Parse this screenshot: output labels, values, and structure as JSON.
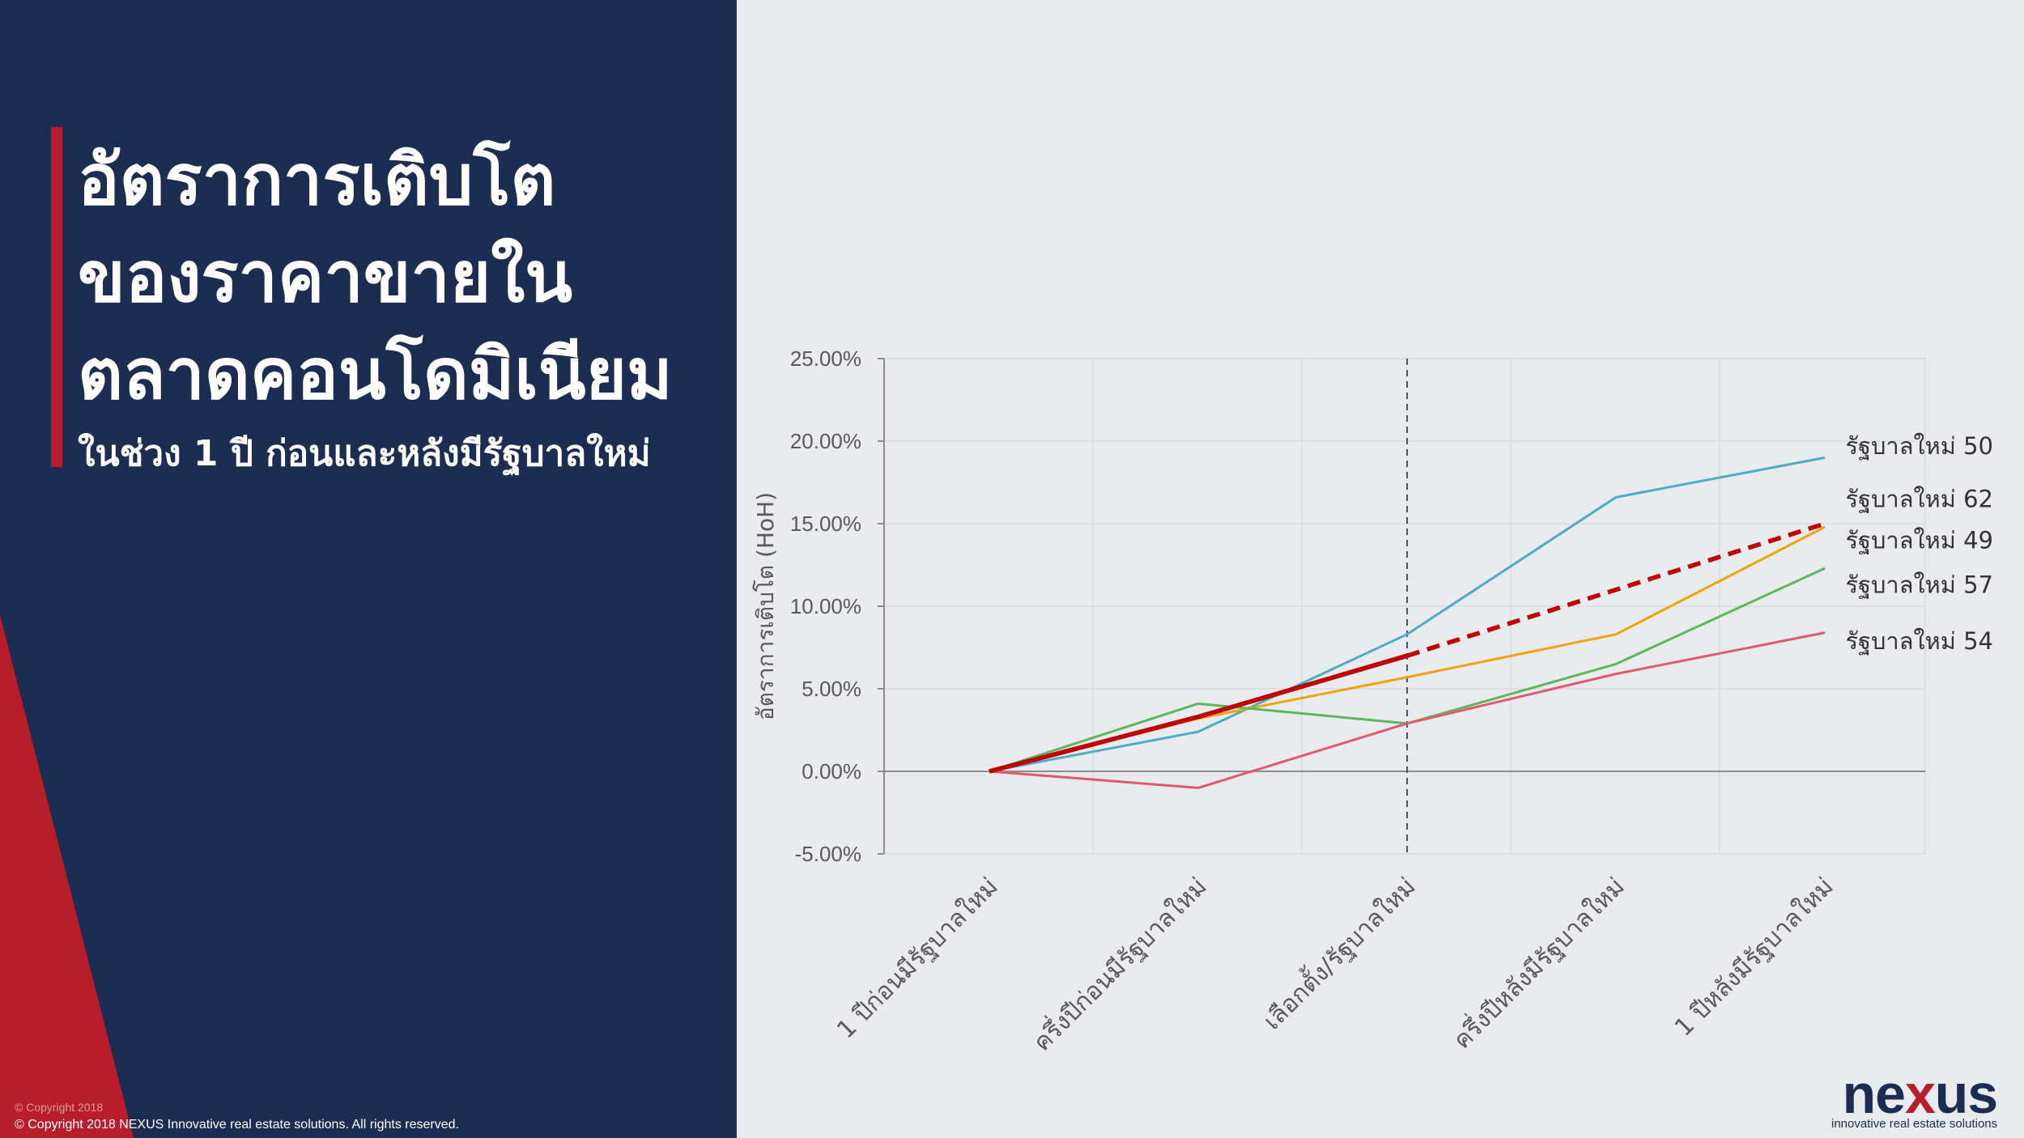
{
  "title": {
    "lines": [
      "อัตราการเติบโต",
      "ของราคาขายใน",
      "ตลาดคอนโดมิเนียม"
    ],
    "subtitle": "ในช่วง 1 ปี ก่อนและหลังมีรัฐบาลใหม่"
  },
  "copyright": {
    "small": "© Copyright 2018",
    "main": "© Copyright 2018 NEXUS Innovative real estate solutions. All rights reserved."
  },
  "logo": {
    "word_pre": "ne",
    "word_x": "x",
    "word_post": "us",
    "tagline": "innovative real estate solutions"
  },
  "colors": {
    "navy": "#1b2d50",
    "accent_red": "#b81d2b",
    "background": "#e9ebef"
  },
  "chart_data": {
    "type": "line",
    "categories": [
      "1 ปีก่อนมีรัฐบาลใหม่",
      "ครึ่งปีก่อนมีรัฐบาลใหม่",
      "เลือกตั้ง/รัฐบาลใหม่",
      "ครึ่งปีหลังมีรัฐบาลใหม่",
      "1 ปีหลังมีรัฐบาลใหม่"
    ],
    "ylabel": "อัตราการเติบโต (HoH)",
    "ylim": [
      -0.05,
      0.25
    ],
    "yticks": [
      -0.05,
      0,
      0.05,
      0.1,
      0.15,
      0.2,
      0.25
    ],
    "ytick_labels": [
      "-5.00%",
      "0.00%",
      "5.00%",
      "10.00%",
      "15.00%",
      "20.00%",
      "25.00%"
    ],
    "grid": true,
    "divider_at_category": 2,
    "series": [
      {
        "name": "รัฐบาลใหม่ 50",
        "color": "#4bacc6",
        "values": [
          0,
          0.024,
          0.083,
          0.166,
          0.19
        ]
      },
      {
        "name": "รัฐบาลใหม่ 62",
        "color": "#c00000",
        "values": [
          0,
          0.033,
          0.07,
          0.11,
          0.15
        ],
        "projected_from_index": 2
      },
      {
        "name": "รัฐบาลใหม่ 49",
        "color": "#f0a30a",
        "values": [
          0,
          0.032,
          0.057,
          0.083,
          0.148
        ]
      },
      {
        "name": "รัฐบาลใหม่ 57",
        "color": "#5cb85c",
        "values": [
          0,
          0.041,
          0.029,
          0.065,
          0.123
        ]
      },
      {
        "name": "รัฐบาลใหม่ 54",
        "color": "#e05a6e",
        "values": [
          0,
          -0.01,
          0.029,
          0.059,
          0.084
        ]
      }
    ],
    "legend_labels": [
      {
        "text": "รัฐบาลใหม่ 50",
        "value": 0.197
      },
      {
        "text": "รัฐบาลใหม่ 62",
        "value": 0.165
      },
      {
        "text": "รัฐบาลใหม่ 49",
        "value": 0.14
      },
      {
        "text": "รัฐบาลใหม่ 57",
        "value": 0.113
      },
      {
        "text": "รัฐบาลใหม่ 54",
        "value": 0.079
      }
    ]
  }
}
